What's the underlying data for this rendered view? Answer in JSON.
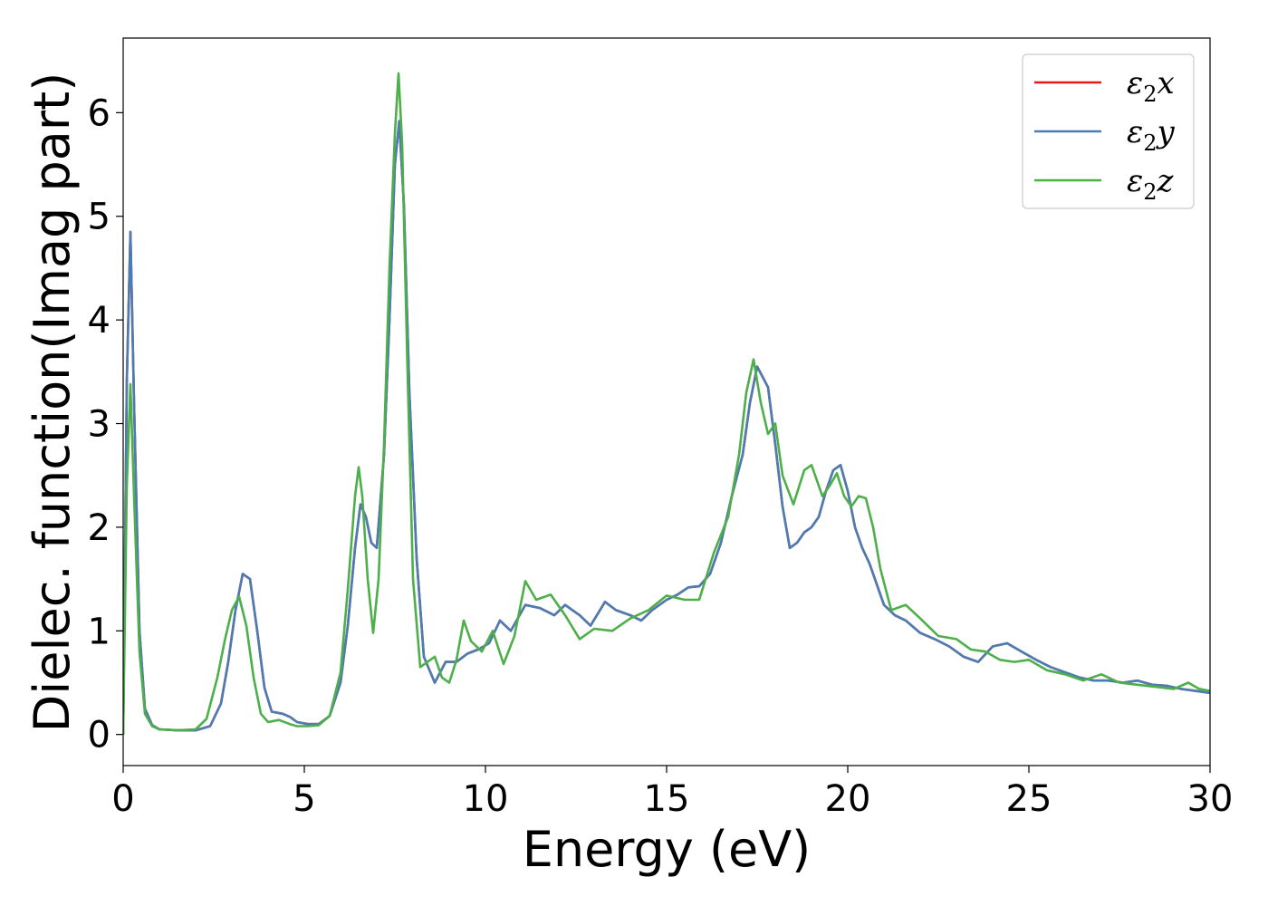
{
  "chart_data": {
    "type": "line",
    "title": "",
    "xlabel": "Energy (eV)",
    "ylabel": "Dielec. function(Imag part)",
    "xlim": [
      0,
      30
    ],
    "ylim": [
      -0.3,
      6.72
    ],
    "xticks": [
      0,
      5,
      10,
      15,
      20,
      25,
      30
    ],
    "yticks": [
      0,
      1,
      2,
      3,
      4,
      5,
      6
    ],
    "grid": false,
    "legend_position": "top-right",
    "series": [
      {
        "name": "ε₂x",
        "legend_base": "ε",
        "legend_sub": "2",
        "legend_var": "x",
        "color": "#e41a1c",
        "x": [
          0,
          0.1,
          0.2,
          0.3,
          0.45,
          0.6,
          0.8,
          1.0,
          1.5,
          2.0,
          2.4,
          2.7,
          2.9,
          3.1,
          3.3,
          3.5,
          3.7,
          3.9,
          4.1,
          4.4,
          4.6,
          4.8,
          5.1,
          5.4,
          5.7,
          6.0,
          6.2,
          6.4,
          6.55,
          6.7,
          6.85,
          7.0,
          7.2,
          7.35,
          7.5,
          7.62,
          7.75,
          7.9,
          8.1,
          8.3,
          8.6,
          8.9,
          9.2,
          9.5,
          9.8,
          10.1,
          10.4,
          10.7,
          11.1,
          11.5,
          11.9,
          12.2,
          12.6,
          12.9,
          13.3,
          13.6,
          14.0,
          14.3,
          14.6,
          15.0,
          15.3,
          15.6,
          15.9,
          16.2,
          16.5,
          16.8,
          17.1,
          17.3,
          17.5,
          17.65,
          17.8,
          18.0,
          18.2,
          18.4,
          18.6,
          18.8,
          19.0,
          19.2,
          19.4,
          19.6,
          19.8,
          20.0,
          20.2,
          20.4,
          20.6,
          20.8,
          21.0,
          21.3,
          21.6,
          22.0,
          22.4,
          22.8,
          23.2,
          23.6,
          24.0,
          24.4,
          24.8,
          25.2,
          25.6,
          26.0,
          26.4,
          26.8,
          27.2,
          27.6,
          28.0,
          28.4,
          28.8,
          29.2,
          29.6,
          30.0
        ],
        "y": [
          0.0,
          3.4,
          4.85,
          3.2,
          1.0,
          0.25,
          0.09,
          0.05,
          0.04,
          0.04,
          0.08,
          0.3,
          0.7,
          1.2,
          1.55,
          1.5,
          1.0,
          0.45,
          0.22,
          0.2,
          0.17,
          0.12,
          0.1,
          0.1,
          0.18,
          0.5,
          1.05,
          1.8,
          2.22,
          2.1,
          1.85,
          1.8,
          2.7,
          4.0,
          5.5,
          5.92,
          5.1,
          3.3,
          1.7,
          0.75,
          0.5,
          0.7,
          0.7,
          0.78,
          0.82,
          0.88,
          1.1,
          1.0,
          1.25,
          1.22,
          1.15,
          1.25,
          1.15,
          1.05,
          1.28,
          1.2,
          1.15,
          1.1,
          1.2,
          1.3,
          1.35,
          1.42,
          1.43,
          1.55,
          1.85,
          2.3,
          2.7,
          3.2,
          3.55,
          3.45,
          3.35,
          2.8,
          2.2,
          1.8,
          1.85,
          1.95,
          2.0,
          2.1,
          2.35,
          2.55,
          2.6,
          2.35,
          2.0,
          1.8,
          1.65,
          1.45,
          1.25,
          1.15,
          1.1,
          0.98,
          0.92,
          0.85,
          0.75,
          0.7,
          0.85,
          0.88,
          0.8,
          0.72,
          0.65,
          0.6,
          0.55,
          0.52,
          0.52,
          0.5,
          0.52,
          0.48,
          0.47,
          0.44,
          0.42,
          0.4
        ]
      },
      {
        "name": "ε₂y",
        "legend_base": "ε",
        "legend_sub": "2",
        "legend_var": "y",
        "color": "#4a7db3",
        "x": [
          0,
          0.1,
          0.2,
          0.3,
          0.45,
          0.6,
          0.8,
          1.0,
          1.5,
          2.0,
          2.4,
          2.7,
          2.9,
          3.1,
          3.3,
          3.5,
          3.7,
          3.9,
          4.1,
          4.4,
          4.6,
          4.8,
          5.1,
          5.4,
          5.7,
          6.0,
          6.2,
          6.4,
          6.55,
          6.7,
          6.85,
          7.0,
          7.2,
          7.35,
          7.5,
          7.62,
          7.75,
          7.9,
          8.1,
          8.3,
          8.6,
          8.9,
          9.2,
          9.5,
          9.8,
          10.1,
          10.4,
          10.7,
          11.1,
          11.5,
          11.9,
          12.2,
          12.6,
          12.9,
          13.3,
          13.6,
          14.0,
          14.3,
          14.6,
          15.0,
          15.3,
          15.6,
          15.9,
          16.2,
          16.5,
          16.8,
          17.1,
          17.3,
          17.5,
          17.65,
          17.8,
          18.0,
          18.2,
          18.4,
          18.6,
          18.8,
          19.0,
          19.2,
          19.4,
          19.6,
          19.8,
          20.0,
          20.2,
          20.4,
          20.6,
          20.8,
          21.0,
          21.3,
          21.6,
          22.0,
          22.4,
          22.8,
          23.2,
          23.6,
          24.0,
          24.4,
          24.8,
          25.2,
          25.6,
          26.0,
          26.4,
          26.8,
          27.2,
          27.6,
          28.0,
          28.4,
          28.8,
          29.2,
          29.6,
          30.0
        ],
        "y": [
          0.0,
          3.4,
          4.85,
          3.2,
          1.0,
          0.25,
          0.09,
          0.05,
          0.04,
          0.04,
          0.08,
          0.3,
          0.7,
          1.2,
          1.55,
          1.5,
          1.0,
          0.45,
          0.22,
          0.2,
          0.17,
          0.12,
          0.1,
          0.1,
          0.18,
          0.5,
          1.05,
          1.8,
          2.22,
          2.1,
          1.85,
          1.8,
          2.7,
          4.0,
          5.5,
          5.92,
          5.1,
          3.3,
          1.7,
          0.75,
          0.5,
          0.7,
          0.7,
          0.78,
          0.82,
          0.88,
          1.1,
          1.0,
          1.25,
          1.22,
          1.15,
          1.25,
          1.15,
          1.05,
          1.28,
          1.2,
          1.15,
          1.1,
          1.2,
          1.3,
          1.35,
          1.42,
          1.43,
          1.55,
          1.85,
          2.3,
          2.7,
          3.2,
          3.55,
          3.45,
          3.35,
          2.8,
          2.2,
          1.8,
          1.85,
          1.95,
          2.0,
          2.1,
          2.35,
          2.55,
          2.6,
          2.35,
          2.0,
          1.8,
          1.65,
          1.45,
          1.25,
          1.15,
          1.1,
          0.98,
          0.92,
          0.85,
          0.75,
          0.7,
          0.85,
          0.88,
          0.8,
          0.72,
          0.65,
          0.6,
          0.55,
          0.52,
          0.52,
          0.5,
          0.52,
          0.48,
          0.47,
          0.44,
          0.42,
          0.4
        ]
      },
      {
        "name": "ε₂z",
        "legend_base": "ε",
        "legend_sub": "2",
        "legend_var": "z",
        "color": "#4daf4a",
        "x": [
          0,
          0.1,
          0.2,
          0.3,
          0.45,
          0.6,
          0.8,
          1.0,
          1.5,
          2.0,
          2.3,
          2.6,
          2.8,
          3.0,
          3.2,
          3.4,
          3.6,
          3.8,
          4.0,
          4.3,
          4.6,
          4.8,
          5.1,
          5.4,
          5.7,
          6.0,
          6.2,
          6.4,
          6.5,
          6.6,
          6.75,
          6.9,
          7.05,
          7.2,
          7.35,
          7.5,
          7.6,
          7.7,
          7.85,
          8.0,
          8.2,
          8.4,
          8.6,
          8.8,
          9.0,
          9.2,
          9.4,
          9.6,
          9.9,
          10.2,
          10.5,
          10.8,
          11.1,
          11.4,
          11.8,
          12.2,
          12.6,
          13.0,
          13.5,
          14.0,
          14.5,
          15.0,
          15.5,
          15.9,
          16.3,
          16.7,
          17.0,
          17.2,
          17.4,
          17.6,
          17.8,
          18.0,
          18.2,
          18.5,
          18.8,
          19.0,
          19.3,
          19.5,
          19.7,
          19.9,
          20.1,
          20.3,
          20.5,
          20.7,
          20.9,
          21.2,
          21.6,
          22.0,
          22.5,
          23.0,
          23.4,
          23.8,
          24.2,
          24.6,
          25.0,
          25.5,
          26.0,
          26.5,
          27.0,
          27.5,
          28.0,
          28.5,
          29.0,
          29.4,
          29.7,
          30.0
        ],
        "y": [
          0.0,
          2.4,
          3.38,
          2.3,
          0.8,
          0.2,
          0.08,
          0.05,
          0.04,
          0.05,
          0.15,
          0.55,
          0.9,
          1.2,
          1.33,
          1.05,
          0.55,
          0.2,
          0.12,
          0.14,
          0.1,
          0.08,
          0.08,
          0.09,
          0.18,
          0.6,
          1.4,
          2.3,
          2.58,
          2.3,
          1.5,
          0.98,
          1.5,
          2.8,
          4.5,
          5.8,
          6.38,
          5.7,
          3.5,
          1.5,
          0.65,
          0.7,
          0.75,
          0.55,
          0.5,
          0.72,
          1.1,
          0.9,
          0.8,
          1.0,
          0.68,
          0.95,
          1.48,
          1.3,
          1.35,
          1.15,
          0.92,
          1.02,
          1.0,
          1.12,
          1.2,
          1.34,
          1.3,
          1.3,
          1.75,
          2.1,
          2.7,
          3.3,
          3.62,
          3.2,
          2.9,
          3.0,
          2.5,
          2.22,
          2.55,
          2.6,
          2.3,
          2.4,
          2.52,
          2.3,
          2.2,
          2.3,
          2.28,
          2.0,
          1.6,
          1.2,
          1.25,
          1.12,
          0.95,
          0.92,
          0.82,
          0.8,
          0.72,
          0.7,
          0.72,
          0.62,
          0.58,
          0.52,
          0.58,
          0.5,
          0.48,
          0.46,
          0.44,
          0.5,
          0.44,
          0.42
        ]
      }
    ]
  }
}
